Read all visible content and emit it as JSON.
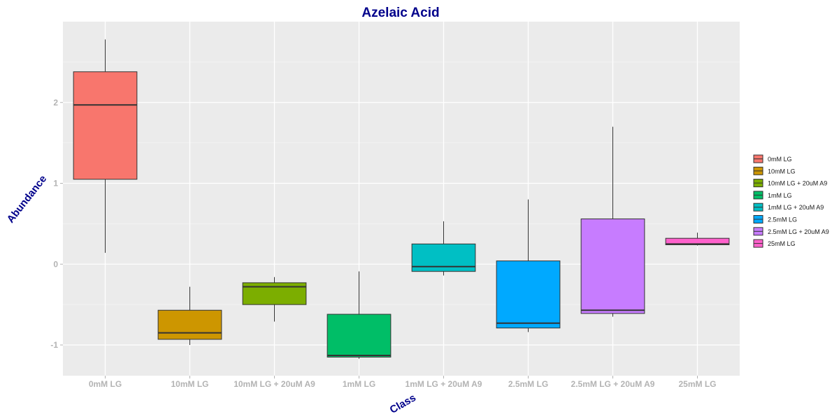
{
  "chart_data": {
    "type": "box",
    "title": "Azelaic Acid",
    "xlabel": "Class",
    "ylabel": "Abundance",
    "ylim": [
      -1.38,
      3.0
    ],
    "yticks": [
      -1,
      0,
      1,
      2
    ],
    "grid": true,
    "legend_position": "right",
    "categories": [
      "0mM LG",
      "10mM LG",
      "10mM LG + 20uM A9",
      "1mM LG",
      "1mM LG + 20uM A9",
      "2.5mM LG",
      "2.5mM LG + 20uM A9",
      "25mM LG"
    ],
    "series": [
      {
        "name": "0mM LG",
        "color": "#F8766D",
        "min": 0.14,
        "q1": 1.05,
        "median": 1.97,
        "q3": 2.38,
        "max": 2.78
      },
      {
        "name": "10mM LG",
        "color": "#CD9600",
        "min": -1.0,
        "q1": -0.93,
        "median": -0.85,
        "q3": -0.57,
        "max": -0.28
      },
      {
        "name": "10mM LG + 20uM A9",
        "color": "#7CAE00",
        "min": -0.71,
        "q1": -0.5,
        "median": -0.28,
        "q3": -0.23,
        "max": -0.16
      },
      {
        "name": "1mM LG",
        "color": "#00BE67",
        "min": -1.17,
        "q1": -1.15,
        "median": -1.13,
        "q3": -0.62,
        "max": -0.09
      },
      {
        "name": "1mM LG + 20uM A9",
        "color": "#00BFC4",
        "min": -0.14,
        "q1": -0.09,
        "median": -0.03,
        "q3": 0.25,
        "max": 0.53
      },
      {
        "name": "2.5mM LG",
        "color": "#00A9FF",
        "min": -0.84,
        "q1": -0.79,
        "median": -0.73,
        "q3": 0.04,
        "max": 0.8
      },
      {
        "name": "2.5mM LG + 20uM A9",
        "color": "#C77CFF",
        "min": -0.65,
        "q1": -0.61,
        "median": -0.57,
        "q3": 0.56,
        "max": 1.7
      },
      {
        "name": "25mM LG",
        "color": "#FF61CC",
        "min": 0.23,
        "q1": 0.24,
        "median": 0.25,
        "q3": 0.32,
        "max": 0.39
      }
    ]
  }
}
